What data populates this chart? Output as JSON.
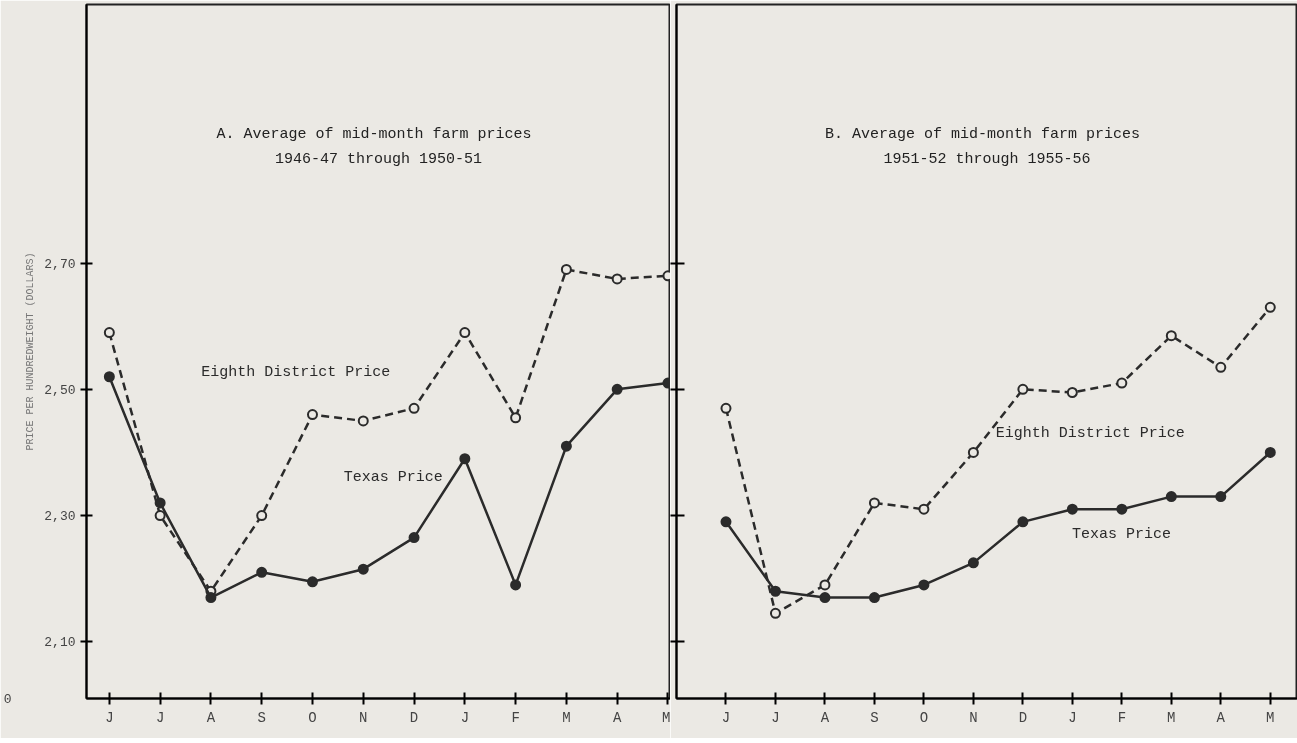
{
  "chart_data": [
    {
      "type": "line",
      "title": "A.  Average of mid-month farm prices",
      "subtitle": "1946-47 through 1950-51",
      "ylabel": "PRICE PER HUNDREDWEIGHT (DOLLARS)",
      "categories": [
        "J",
        "J",
        "A",
        "S",
        "O",
        "N",
        "D",
        "J",
        "F",
        "M",
        "A",
        "M"
      ],
      "series": [
        {
          "name": "Eighth District Price",
          "color": "#2b2b2b",
          "line_style": "dashed",
          "values": [
            2.59,
            2.3,
            2.18,
            2.3,
            2.46,
            2.45,
            2.47,
            2.59,
            2.455,
            2.69,
            2.675,
            2.68
          ]
        },
        {
          "name": "Texas Price",
          "color": "#2b2b2b",
          "line_style": "solid",
          "values": [
            2.52,
            2.32,
            2.17,
            2.21,
            2.195,
            2.215,
            2.265,
            2.39,
            2.19,
            2.41,
            2.5,
            2.51
          ]
        }
      ],
      "ylim": [
        2.01,
        3.11
      ],
      "yticks": [
        {
          "value": 2.1,
          "label": "2,10"
        },
        {
          "value": 2.3,
          "label": "2,30"
        },
        {
          "value": 2.5,
          "label": "2,50"
        },
        {
          "value": 2.7,
          "label": "2,70"
        }
      ],
      "annotations": [
        "0"
      ],
      "grid": false,
      "legend": false,
      "marker": "circle"
    },
    {
      "type": "line",
      "title": "B.  Average of mid-month farm prices",
      "subtitle": "1951-52 through 1955-56",
      "categories": [
        "J",
        "J",
        "A",
        "S",
        "O",
        "N",
        "D",
        "J",
        "F",
        "M",
        "A",
        "M"
      ],
      "series": [
        {
          "name": "Eighth District Price",
          "color": "#2b2b2b",
          "line_style": "dashed",
          "values": [
            2.47,
            2.145,
            2.19,
            2.32,
            2.31,
            2.4,
            2.5,
            2.495,
            2.51,
            2.585,
            2.535,
            2.63
          ]
        },
        {
          "name": "Texas Price",
          "color": "#2b2b2b",
          "line_style": "solid",
          "values": [
            2.29,
            2.18,
            2.17,
            2.17,
            2.19,
            2.225,
            2.29,
            2.31,
            2.31,
            2.33,
            2.33,
            2.4
          ]
        }
      ],
      "ylim": [
        2.01,
        3.11
      ],
      "yticks": [
        {
          "value": 2.1,
          "label": null
        },
        {
          "value": 2.3,
          "label": null
        },
        {
          "value": 2.5,
          "label": null
        },
        {
          "value": 2.7,
          "label": null
        }
      ],
      "tick_labels": "x",
      "grid": false,
      "legend": false,
      "marker": "circle"
    }
  ]
}
